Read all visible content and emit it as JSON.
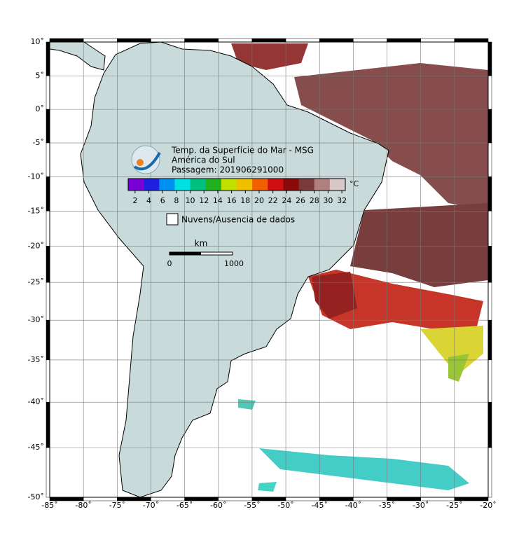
{
  "map": {
    "lonlim": [
      -85,
      -20
    ],
    "latlim": [
      -50,
      10
    ],
    "lon_ticks": [
      {
        "value": -85,
        "label": "-85˚"
      },
      {
        "value": -80,
        "label": "-80˚"
      },
      {
        "value": -75,
        "label": "-75˚"
      },
      {
        "value": -70,
        "label": "-70˚"
      },
      {
        "value": -65,
        "label": "-65˚"
      },
      {
        "value": -60,
        "label": "-60˚"
      },
      {
        "value": -55,
        "label": "-55˚"
      },
      {
        "value": -50,
        "label": "-50˚"
      },
      {
        "value": -45,
        "label": "-45˚"
      },
      {
        "value": -40,
        "label": "-40˚"
      },
      {
        "value": -35,
        "label": "-35˚"
      },
      {
        "value": -30,
        "label": "-30˚"
      },
      {
        "value": -25,
        "label": "-25˚"
      },
      {
        "value": -20,
        "label": "-20˚"
      }
    ],
    "lat_ticks": [
      {
        "value": 10,
        "label": "10˚"
      },
      {
        "value": 5,
        "label": "5˚"
      },
      {
        "value": 0,
        "label": "0˚"
      },
      {
        "value": -5,
        "label": "-5˚"
      },
      {
        "value": -10,
        "label": "-10˚"
      },
      {
        "value": -15,
        "label": "-15˚"
      },
      {
        "value": -20,
        "label": "-20˚"
      },
      {
        "value": -25,
        "label": "-25˚"
      },
      {
        "value": -30,
        "label": "-30˚"
      },
      {
        "value": -35,
        "label": "-35˚"
      },
      {
        "value": -40,
        "label": "-40˚"
      },
      {
        "value": -45,
        "label": "-45˚"
      },
      {
        "value": -50,
        "label": "-50˚"
      }
    ],
    "title_lines": [
      "Temp. da Superfície do Mar - MSG",
      "América do Sul",
      "Passagem: 201906291000"
    ],
    "colorbar": {
      "range": [
        1,
        32.5
      ],
      "ticks": [
        2,
        4,
        6,
        8,
        10,
        12,
        14,
        16,
        18,
        20,
        22,
        24,
        26,
        28,
        30,
        32
      ],
      "unit": "°C",
      "colors": [
        "#7a00d8",
        "#2020e0",
        "#0090f0",
        "#00e0e0",
        "#00c080",
        "#20b020",
        "#c0e000",
        "#f0c000",
        "#f06000",
        "#d01010",
        "#8a0a0a",
        "#7a3a3a",
        "#b08080",
        "#d8c8c8"
      ]
    },
    "no_data_label": "Nuvens/Ausencia de dados",
    "scalebar": {
      "unit": "km",
      "labels": [
        "0",
        "1000"
      ]
    }
  }
}
